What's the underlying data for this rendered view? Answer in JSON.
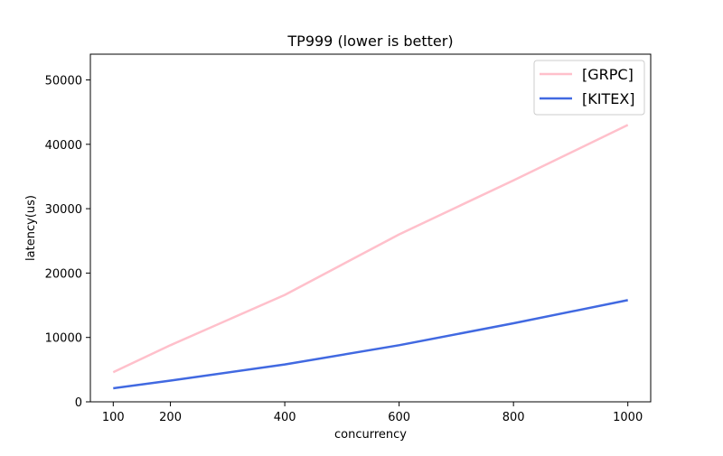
{
  "chart_data": {
    "type": "line",
    "title": "TP999 (lower is better)",
    "xlabel": "concurrency",
    "ylabel": "latency(us)",
    "x": [
      100,
      200,
      400,
      600,
      800,
      1000
    ],
    "xticks": [
      100,
      200,
      400,
      600,
      800,
      1000
    ],
    "yticks": [
      0,
      10000,
      20000,
      30000,
      40000,
      50000
    ],
    "xlim": [
      60,
      1040
    ],
    "ylim": [
      0,
      54000
    ],
    "grid": false,
    "legend_position": "top-right",
    "series": [
      {
        "name": "[GRPC]",
        "color": "#ffc0cb",
        "values": [
          4600,
          8800,
          16600,
          26000,
          34400,
          43000
        ]
      },
      {
        "name": "[KITEX]",
        "color": "#4169e1",
        "values": [
          2100,
          3300,
          5800,
          8800,
          12200,
          15800
        ]
      }
    ]
  }
}
